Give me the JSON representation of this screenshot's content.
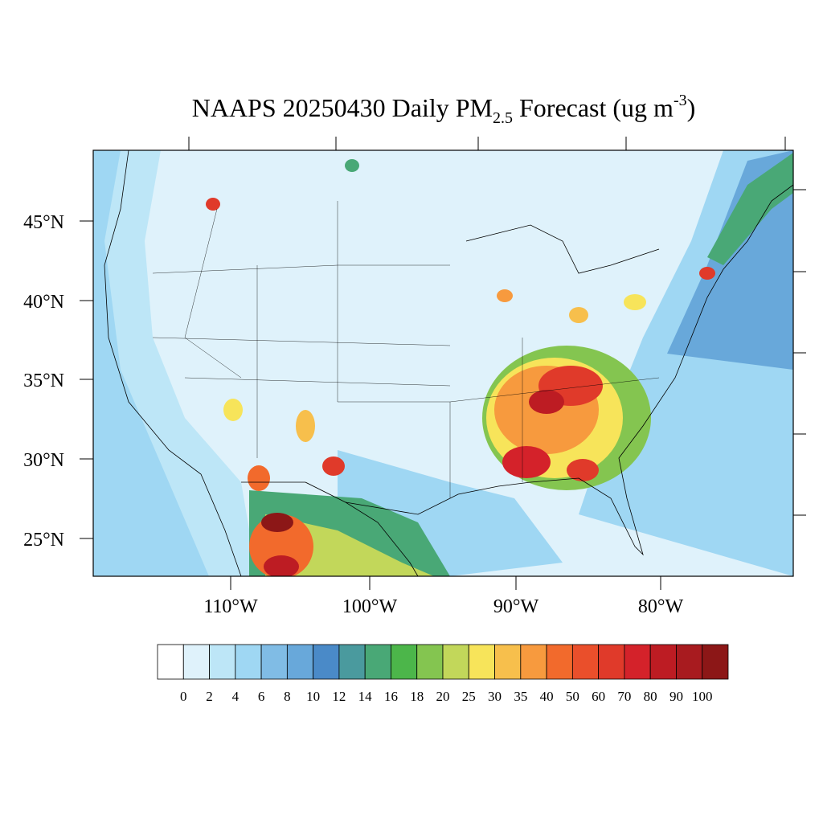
{
  "title": {
    "main": "NAAPS 20250430 Daily PM",
    "subscript": "2.5",
    "rest": " Forecast (ug m",
    "superscript": "-3",
    "end": ")"
  },
  "lat_labels": [
    "45°N",
    "40°N",
    "35°N",
    "30°N",
    "25°N"
  ],
  "lon_labels": [
    "110°W",
    "100°W",
    "90°W",
    "80°W"
  ],
  "colorbar": {
    "labels": [
      0,
      2,
      4,
      6,
      8,
      10,
      12,
      14,
      16,
      18,
      20,
      25,
      30,
      35,
      40,
      50,
      60,
      70,
      80,
      90,
      100
    ],
    "colors": [
      "#ffffff",
      "#dff2fb",
      "#bde6f7",
      "#9fd7f3",
      "#80bce5",
      "#68a8da",
      "#4a8ac8",
      "#4a9a9e",
      "#49a876",
      "#4cb64a",
      "#84c550",
      "#c2d75a",
      "#f7e45a",
      "#f7bf4c",
      "#f79a3e",
      "#f26a2c",
      "#ea4f2b",
      "#e03a2a",
      "#d4222a",
      "#bd1c23",
      "#a81b1f",
      "#8c1717"
    ]
  }
}
